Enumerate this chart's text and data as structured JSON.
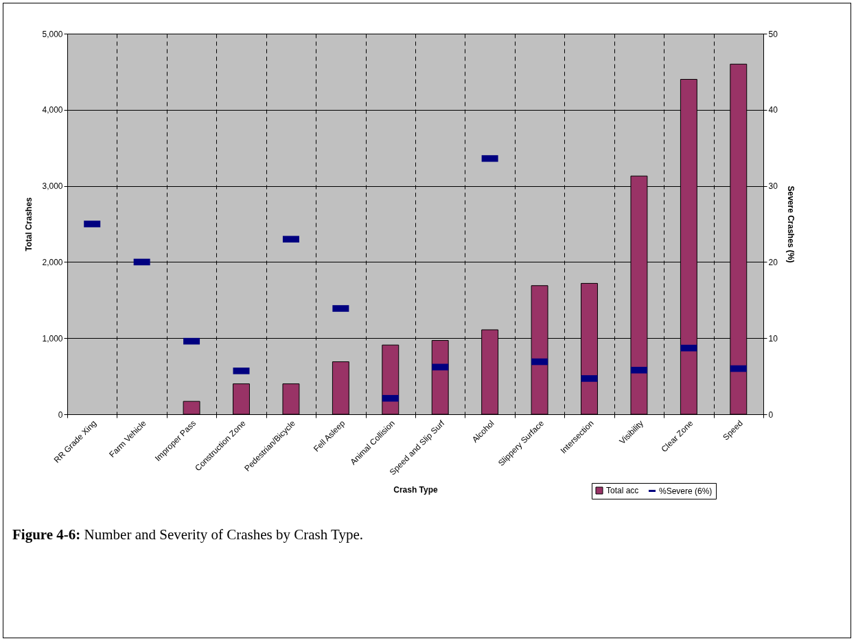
{
  "chart_data": {
    "type": "bar",
    "title": "Figure 4-6: Number and Severity of Crashes by Crash Type.",
    "xlabel": "Crash Type",
    "ylabel": "Total Crashes",
    "y2label": "Severe Crashes (%)",
    "categories": [
      "RR Grade Xing",
      "Farm Vehicle",
      "Improper Pass",
      "Construction Zone",
      "Pedestrian/Bicycle",
      "Fell Asleep",
      "Animal Collision",
      "Speed and Slip Surf",
      "Alcohol",
      "Slippery Surface",
      "Intersection",
      "Visibility",
      "Clear Zone",
      "Speed"
    ],
    "series": [
      {
        "name": "Total acc",
        "color": "#993366",
        "values": [
          null,
          null,
          170,
          400,
          400,
          690,
          910,
          970,
          1110,
          1690,
          1720,
          3130,
          4400,
          4600
        ]
      },
      {
        "name": "%Severe (6%)",
        "type": "scatter",
        "axis": "y2",
        "color": "#000080",
        "values": [
          25,
          20,
          9.6,
          5.7,
          23,
          13.9,
          2.1,
          6.2,
          33.6,
          6.9,
          4.7,
          5.8,
          8.7,
          6.0
        ]
      }
    ],
    "ylim": [
      0,
      5000
    ],
    "yticks": [
      0,
      {
        "value": 1000,
        "label": "1,000"
      },
      {
        "value": 2000,
        "label": "2,000"
      },
      {
        "value": 3000,
        "label": "3,000"
      },
      {
        "value": 4000,
        "label": "4,000"
      },
      {
        "value": 5000,
        "label": "5,000"
      }
    ],
    "y2lim": [
      0,
      50
    ],
    "y2ticks": [
      0,
      10,
      20,
      30,
      40,
      50
    ],
    "grid": true,
    "legend": "bottom right"
  }
}
